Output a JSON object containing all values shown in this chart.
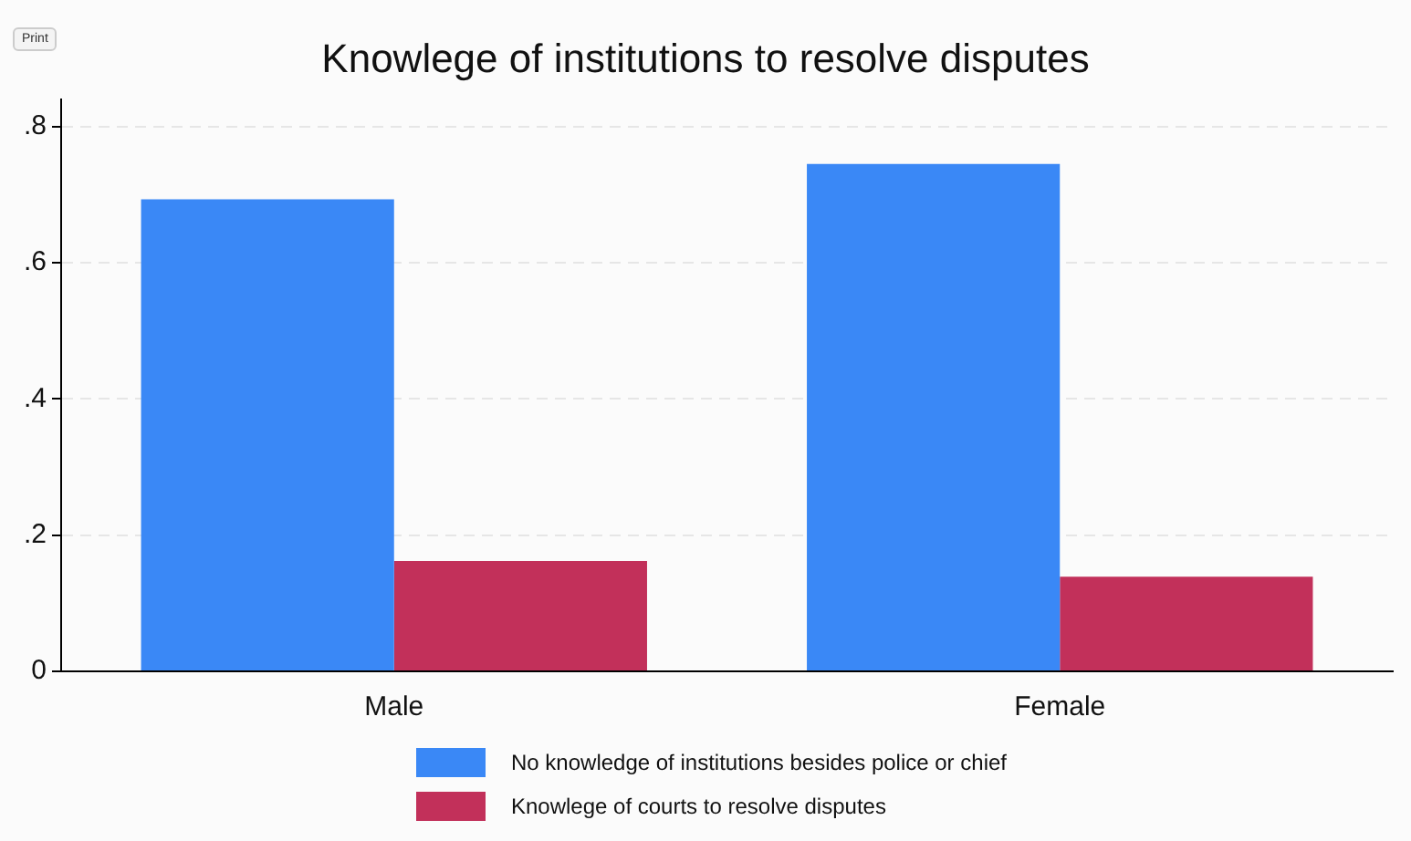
{
  "chart_data": {
    "type": "bar",
    "title": "Knowlege of institutions to resolve disputes",
    "categories": [
      "Male",
      "Female"
    ],
    "series": [
      {
        "name": "No knowledge of institutions besides police or chief",
        "color": "#3a88f6",
        "values": [
          0.693,
          0.745
        ]
      },
      {
        "name": "Knowlege of courts to resolve disputes",
        "color": "#c2305a",
        "values": [
          0.162,
          0.139
        ]
      }
    ],
    "ylim": [
      0,
      0.84
    ],
    "yticks": [
      0,
      {
        "value": 0.2,
        "label": ".2"
      },
      {
        "value": 0.4,
        "label": ".4"
      },
      {
        "value": 0.6,
        "label": ".6"
      },
      {
        "value": 0.8,
        "label": ".8"
      }
    ],
    "grid": "y",
    "legend": "bottom",
    "annotations": [
      "Print"
    ]
  }
}
